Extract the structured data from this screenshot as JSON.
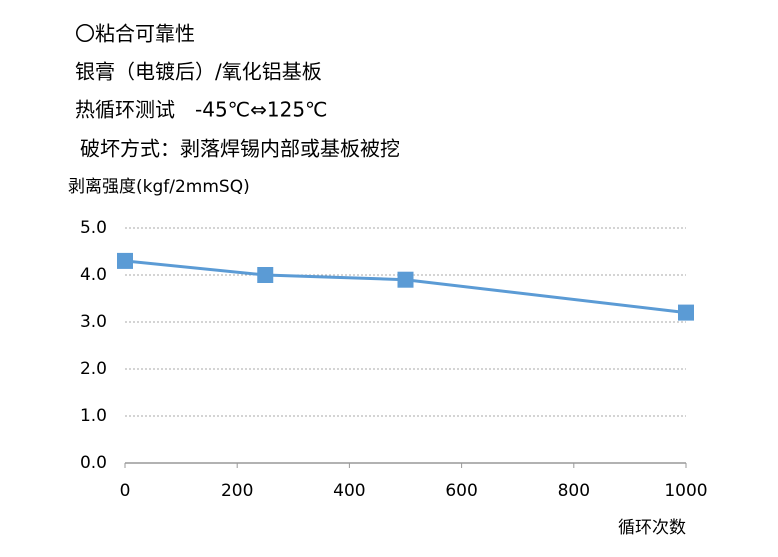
{
  "chart_data": {
    "type": "line",
    "annotations": [
      "〇粘合可靠性",
      "银膏（电镀后）/氧化铝基板",
      "热循环测试　-45℃⇔125℃",
      "破坏方式：剥落焊锡内部或基板被挖"
    ],
    "y_label": "剥离强度(kgf/2mmSQ)",
    "x_label": "循环次数",
    "x": [
      0,
      250,
      500,
      1000
    ],
    "series": [
      {
        "name": "剥离强度",
        "color": "#5b9bd5",
        "values": [
          4.3,
          4.0,
          3.9,
          3.2
        ]
      }
    ],
    "xlim": [
      0,
      1000
    ],
    "xticks": [
      0,
      200,
      400,
      600,
      800,
      1000
    ],
    "ylim": [
      0,
      5
    ],
    "yticks": [
      {
        "value": 0,
        "label": "0.0"
      },
      {
        "value": 1,
        "label": "1.0"
      },
      {
        "value": 2,
        "label": "2.0"
      },
      {
        "value": 3,
        "label": "3.0"
      },
      {
        "value": 4,
        "label": "4.0"
      },
      {
        "value": 5,
        "label": "5.0"
      }
    ],
    "grid": true
  }
}
